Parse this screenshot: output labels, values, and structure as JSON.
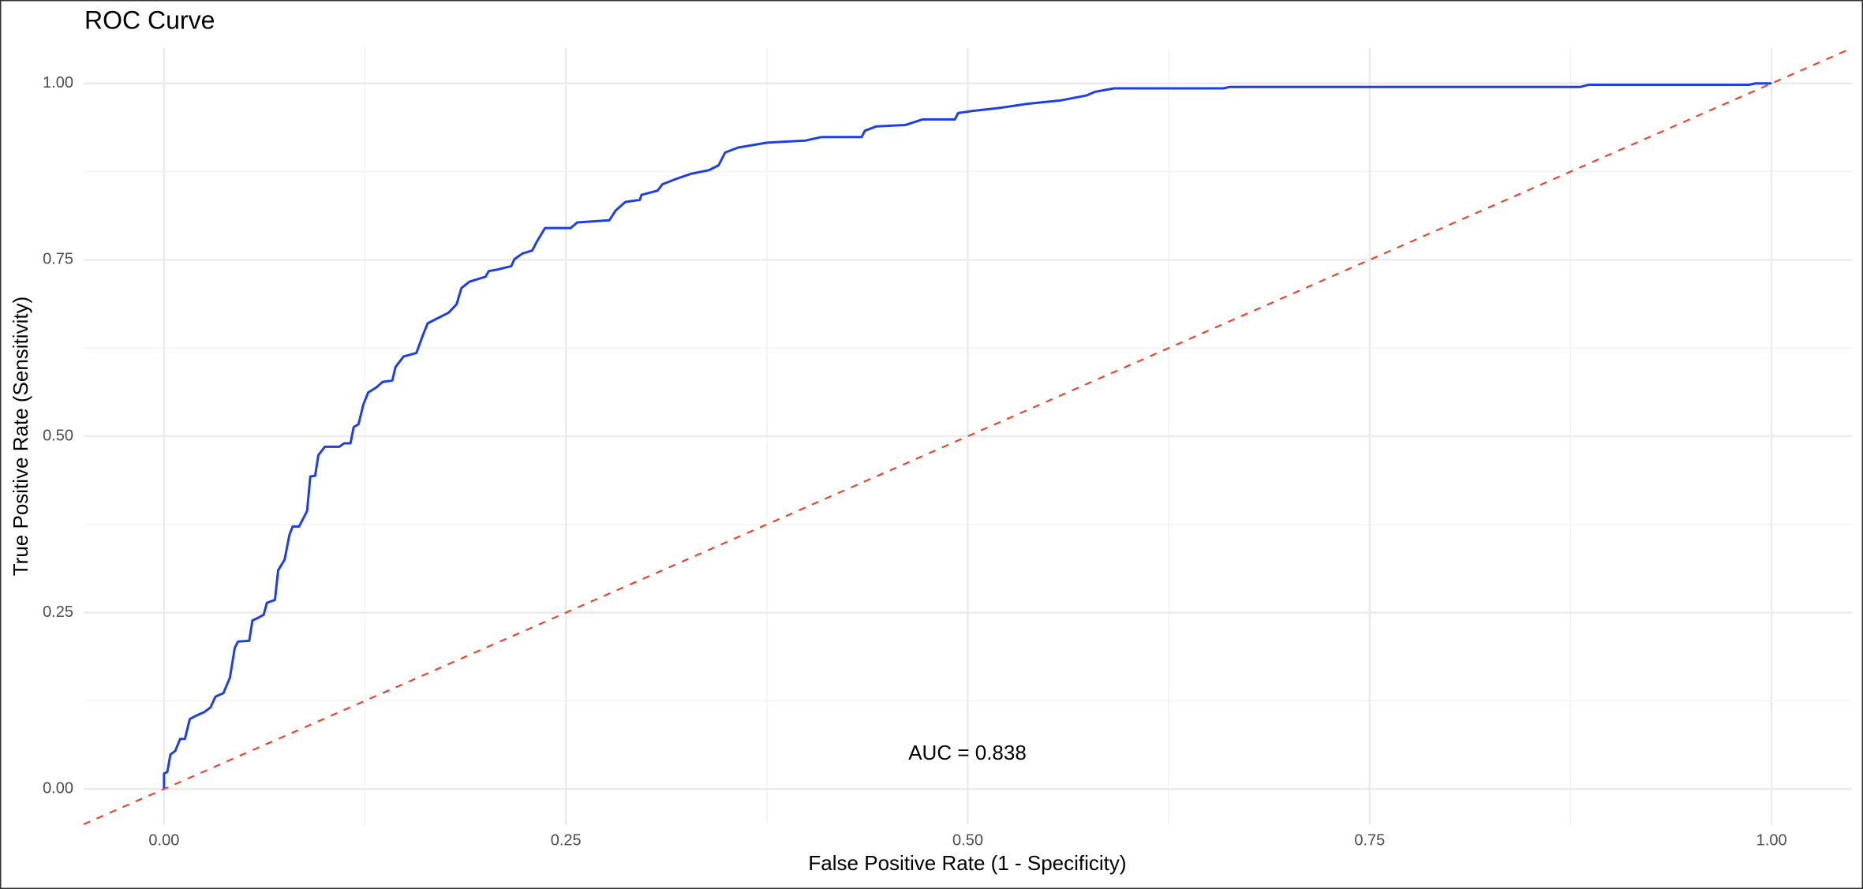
{
  "chart_data": {
    "type": "line",
    "title": "ROC Curve",
    "x_label": "False Positive Rate (1 - Specificity)",
    "y_label": "True Positive Rate (Sensitivity)",
    "annotation": "AUC = 0.838",
    "xlim": [
      -0.05,
      1.05
    ],
    "ylim": [
      -0.05,
      1.05
    ],
    "xticks": [
      {
        "value": 0,
        "label": "0.00"
      },
      0.25,
      {
        "value": 0.5,
        "label": "0.50"
      },
      0.75,
      {
        "value": 1,
        "label": "1.00"
      }
    ],
    "yticks": [
      {
        "value": 0,
        "label": "0.00"
      },
      0.25,
      {
        "value": 0.5,
        "label": "0.50"
      },
      0.75,
      {
        "value": 1,
        "label": "1.00"
      }
    ],
    "grid": true,
    "series": [
      {
        "color": "#1f3fe6",
        "line_style": "solid",
        "x": [
          0,
          0,
          0.002,
          0.004,
          0.007,
          0.01,
          0.013,
          0.016,
          0.02,
          0.025,
          0.029,
          0.032,
          0.037,
          0.041,
          0.044,
          0.046,
          0.053,
          0.055,
          0.058,
          0.062,
          0.064,
          0.069,
          0.071,
          0.075,
          0.078,
          0.08,
          0.084,
          0.089,
          0.091,
          0.094,
          0.096,
          0.1,
          0.109,
          0.112,
          0.116,
          0.118,
          0.121,
          0.124,
          0.127,
          0.132,
          0.136,
          0.142,
          0.144,
          0.149,
          0.157,
          0.161,
          0.164,
          0.17,
          0.177,
          0.182,
          0.185,
          0.19,
          0.2,
          0.202,
          0.207,
          0.216,
          0.218,
          0.223,
          0.229,
          0.232,
          0.237,
          0.253,
          0.257,
          0.277,
          0.281,
          0.287,
          0.296,
          0.297,
          0.307,
          0.31,
          0.319,
          0.328,
          0.339,
          0.345,
          0.349,
          0.357,
          0.375,
          0.399,
          0.409,
          0.434,
          0.436,
          0.443,
          0.461,
          0.472,
          0.492,
          0.494,
          0.503,
          0.519,
          0.537,
          0.558,
          0.574,
          0.579,
          0.591,
          0.659,
          0.663,
          0.881,
          0.886,
          0.986,
          0.99,
          1
        ],
        "values": [
          0,
          0.022,
          0.024,
          0.049,
          0.054,
          0.071,
          0.071,
          0.099,
          0.104,
          0.109,
          0.116,
          0.131,
          0.136,
          0.158,
          0.2,
          0.209,
          0.21,
          0.239,
          0.242,
          0.247,
          0.264,
          0.268,
          0.31,
          0.325,
          0.36,
          0.372,
          0.372,
          0.394,
          0.443,
          0.444,
          0.473,
          0.485,
          0.485,
          0.49,
          0.49,
          0.513,
          0.517,
          0.545,
          0.562,
          0.569,
          0.577,
          0.579,
          0.598,
          0.613,
          0.618,
          0.643,
          0.66,
          0.667,
          0.675,
          0.687,
          0.71,
          0.719,
          0.726,
          0.734,
          0.736,
          0.741,
          0.751,
          0.759,
          0.763,
          0.776,
          0.795,
          0.795,
          0.803,
          0.806,
          0.82,
          0.832,
          0.835,
          0.842,
          0.848,
          0.857,
          0.865,
          0.872,
          0.877,
          0.884,
          0.902,
          0.909,
          0.916,
          0.919,
          0.924,
          0.924,
          0.933,
          0.939,
          0.941,
          0.949,
          0.949,
          0.958,
          0.961,
          0.965,
          0.971,
          0.976,
          0.983,
          0.988,
          0.993,
          0.993,
          0.995,
          0.995,
          0.998,
          0.998,
          1,
          1
        ]
      },
      {
        "color": "#e8452c",
        "line_style": "dashed",
        "x": [
          -0.05,
          1.05
        ],
        "values": [
          -0.05,
          1.05
        ]
      }
    ]
  }
}
